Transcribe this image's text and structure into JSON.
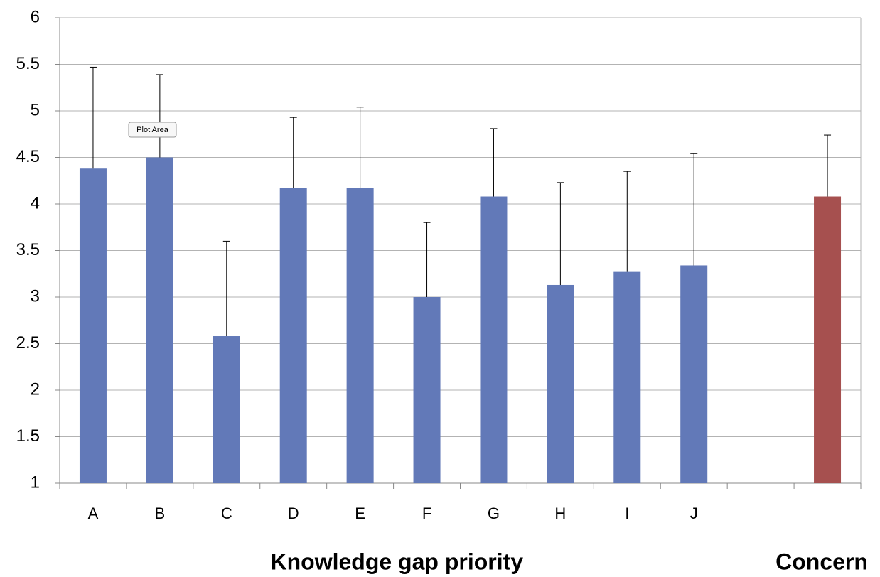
{
  "chart_data": {
    "type": "bar",
    "categories": [
      "A",
      "B",
      "C",
      "D",
      "E",
      "F",
      "G",
      "H",
      "I",
      "J",
      null,
      null
    ],
    "series": [
      {
        "name": "Knowledge gap priority",
        "color": "#6279b8",
        "values": [
          4.38,
          4.5,
          2.58,
          4.17,
          4.17,
          3.0,
          4.08,
          3.13,
          3.27,
          3.34,
          null,
          null
        ],
        "errors": [
          1.09,
          0.89,
          1.02,
          0.76,
          0.87,
          0.8,
          0.73,
          1.1,
          1.08,
          1.2,
          null,
          null
        ]
      },
      {
        "name": "Concern",
        "color": "#a6504f",
        "values": [
          null,
          null,
          null,
          null,
          null,
          null,
          null,
          null,
          null,
          null,
          null,
          4.08
        ],
        "errors": [
          null,
          null,
          null,
          null,
          null,
          null,
          null,
          null,
          null,
          null,
          null,
          0.66
        ]
      }
    ],
    "ylim": [
      1,
      6
    ],
    "yticks": [
      1,
      1.5,
      2,
      2.5,
      3,
      3.5,
      4,
      4.5,
      5,
      5.5,
      6
    ],
    "grid": true
  },
  "tooltip": "Plot Area"
}
